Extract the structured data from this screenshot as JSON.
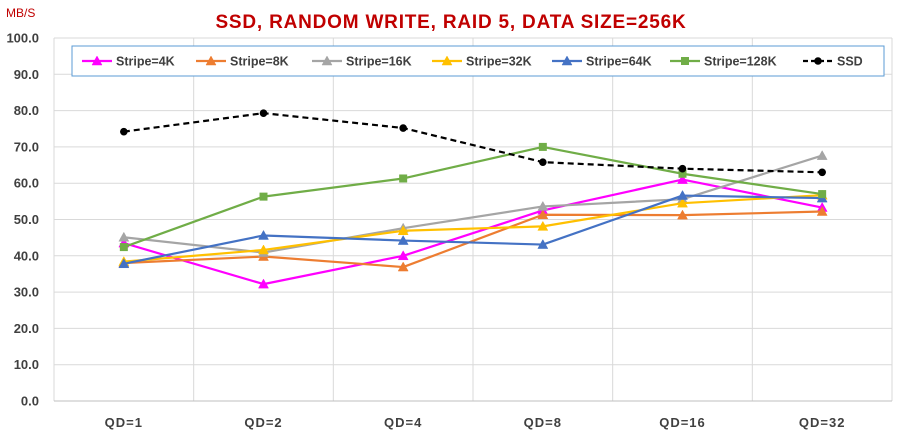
{
  "chart_data": {
    "type": "line",
    "title": "SSD, RANDOM WRITE, RAID 5, DATA SIZE=256K",
    "ylabel": "MB/S",
    "xlabel": "",
    "categories": [
      "QD=1",
      "QD=2",
      "QD=4",
      "QD=8",
      "QD=16",
      "QD=32"
    ],
    "ylim": [
      0,
      100
    ],
    "yticks": [
      "0.0",
      "10.0",
      "20.0",
      "30.0",
      "40.0",
      "50.0",
      "60.0",
      "70.0",
      "80.0",
      "90.0",
      "100.0"
    ],
    "grid": true,
    "legend_position": "top",
    "title_color": "#c00000",
    "series": [
      {
        "name": "Stripe=4K",
        "color": "#ff00ff",
        "marker": "triangle",
        "dashed": false,
        "values": [
          43.5,
          32.2,
          40.0,
          52.5,
          61.0,
          53.3
        ]
      },
      {
        "name": "Stripe=8K",
        "color": "#ed7d31",
        "marker": "triangle",
        "dashed": false,
        "values": [
          38.0,
          39.8,
          36.9,
          51.3,
          51.2,
          52.2
        ]
      },
      {
        "name": "Stripe=16K",
        "color": "#a5a5a5",
        "marker": "triangle",
        "dashed": false,
        "values": [
          45.1,
          40.9,
          47.6,
          53.6,
          55.6,
          67.6
        ]
      },
      {
        "name": "Stripe=32K",
        "color": "#ffc000",
        "marker": "triangle",
        "dashed": false,
        "values": [
          38.4,
          41.6,
          46.9,
          48.1,
          54.5,
          56.7
        ]
      },
      {
        "name": "Stripe=64K",
        "color": "#4472c4",
        "marker": "triangle",
        "dashed": false,
        "values": [
          37.8,
          45.6,
          44.2,
          43.1,
          56.6,
          55.9
        ]
      },
      {
        "name": "Stripe=128K",
        "color": "#70ad47",
        "marker": "square",
        "dashed": false,
        "values": [
          42.4,
          56.3,
          61.3,
          70.0,
          62.6,
          57.0
        ]
      },
      {
        "name": "SSD",
        "color": "#000000",
        "marker": "circle",
        "dashed": true,
        "values": [
          74.2,
          79.3,
          75.2,
          65.8,
          64.0,
          63.0
        ]
      }
    ]
  }
}
